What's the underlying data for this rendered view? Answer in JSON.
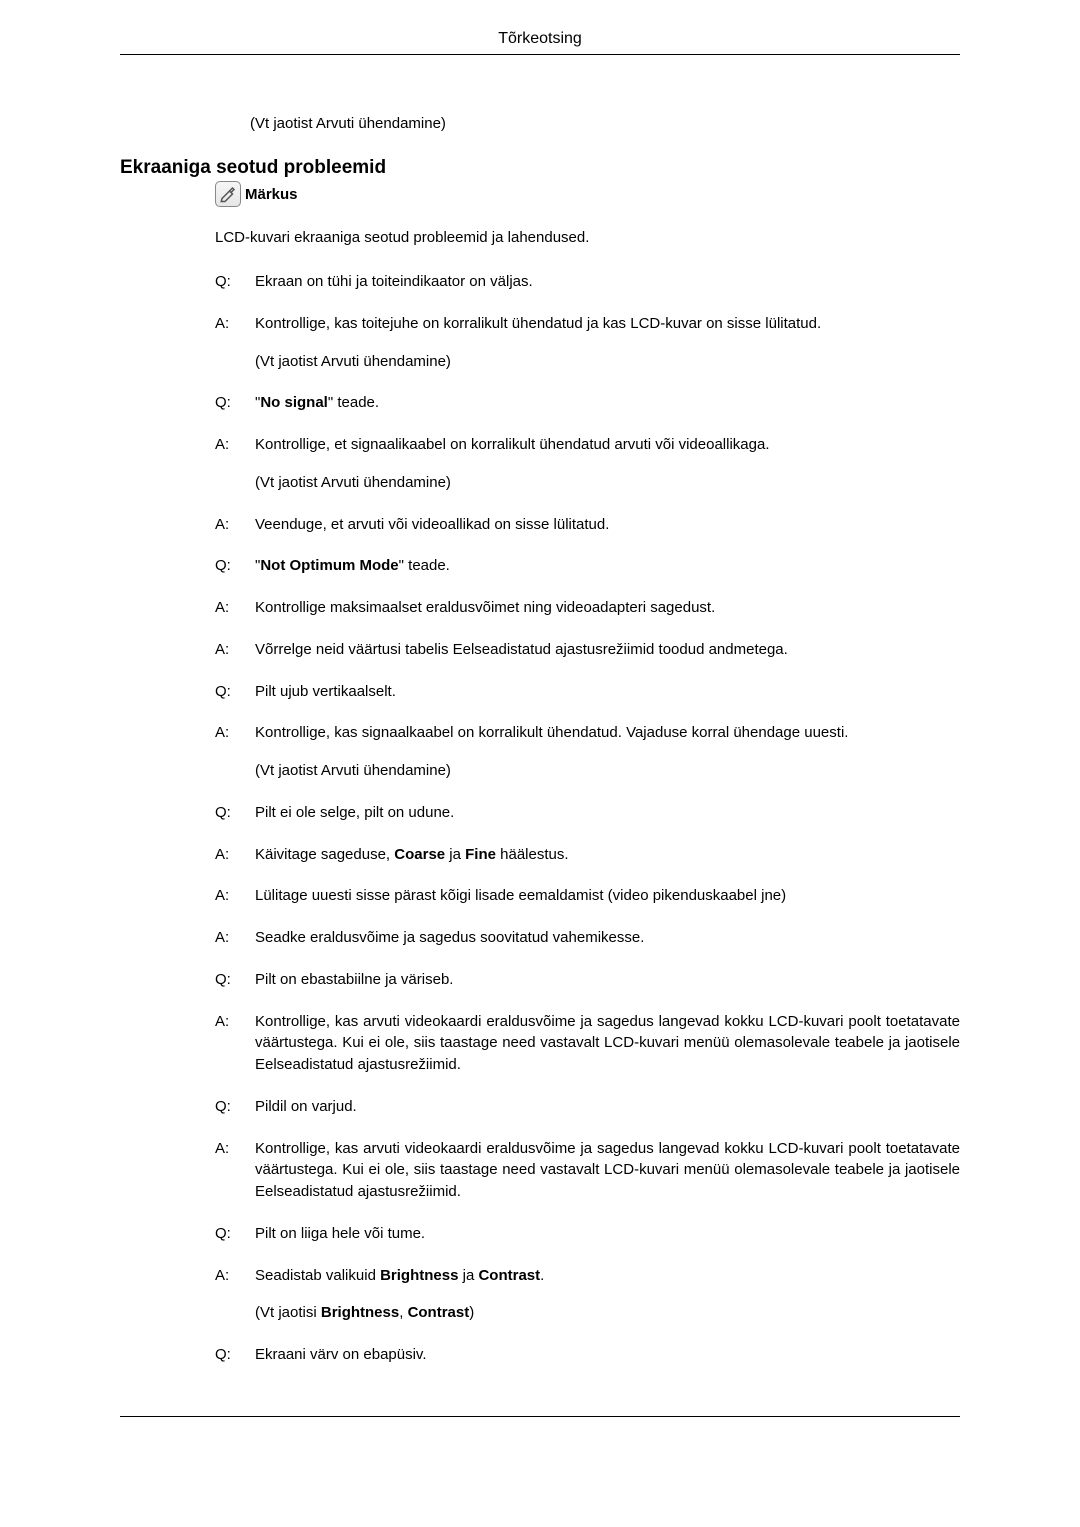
{
  "header": "Tõrkeotsing",
  "introRef": "(Vt jaotist Arvuti ühendamine)",
  "sectionTitle": "Ekraaniga seotud probleemid",
  "noteLabel": "Märkus",
  "description": "LCD-kuvari ekraaniga seotud probleemid ja lahendused.",
  "qa": [
    {
      "label": "Q:",
      "text": "Ekraan on tühi ja toiteindikaator on väljas."
    },
    {
      "label": "A:",
      "text": "Kontrollige, kas toitejuhe on korralikult ühendatud ja kas LCD-kuvar on sisse lülitatud.",
      "sub": "(Vt jaotist Arvuti ühendamine)"
    },
    {
      "label": "Q:",
      "text": "\"<b>No signal</b>\" teade."
    },
    {
      "label": "A:",
      "text": "Kontrollige, et signaalikaabel on korralikult ühendatud arvuti või videoallikaga.",
      "sub": "(Vt jaotist Arvuti ühendamine)"
    },
    {
      "label": "A:",
      "text": "Veenduge, et arvuti või videoallikad on sisse lülitatud."
    },
    {
      "label": "Q:",
      "text": "\"<b>Not Optimum Mode</b>\" teade."
    },
    {
      "label": "A:",
      "text": "Kontrollige maksimaalset eraldusvõimet ning videoadapteri sagedust."
    },
    {
      "label": "A:",
      "text": "Võrrelge neid väärtusi tabelis Eelseadistatud ajastusrežiimid toodud andmetega."
    },
    {
      "label": "Q:",
      "text": "Pilt ujub vertikaalselt."
    },
    {
      "label": "A:",
      "text": "Kontrollige, kas signaalkaabel on korralikult ühendatud. Vajaduse korral ühendage uuesti.",
      "sub": "(Vt jaotist Arvuti ühendamine)"
    },
    {
      "label": "Q:",
      "text": "Pilt ei ole selge, pilt on udune."
    },
    {
      "label": "A:",
      "text": "Käivitage sageduse, <b>Coarse</b> ja <b>Fine</b> häälestus."
    },
    {
      "label": "A:",
      "text": "Lülitage uuesti sisse pärast kõigi lisade eemaldamist (video pikenduskaabel jne)"
    },
    {
      "label": "A:",
      "text": "Seadke eraldusvõime ja sagedus soovitatud vahemikesse."
    },
    {
      "label": "Q:",
      "text": "Pilt on ebastabiilne ja väriseb."
    },
    {
      "label": "A:",
      "text": "Kontrollige, kas arvuti videokaardi eraldusvõime ja sagedus langevad kokku LCD-kuvari poolt toetatavate väärtustega. Kui ei ole, siis taastage need vastavalt LCD-kuvari menüü olemasolevale teabele ja jaotisele Eelseadistatud ajastusrežiimid."
    },
    {
      "label": "Q:",
      "text": "Pildil on varjud."
    },
    {
      "label": "A:",
      "text": "Kontrollige, kas arvuti videokaardi eraldusvõime ja sagedus langevad kokku LCD-kuvari poolt toetatavate väärtustega. Kui ei ole, siis taastage need vastavalt LCD-kuvari menüü olemasolevale teabele ja jaotisele Eelseadistatud ajastusrežiimid."
    },
    {
      "label": "Q:",
      "text": "Pilt on liiga hele või tume."
    },
    {
      "label": "A:",
      "text": "Seadistab valikuid <b>Brightness</b> ja <b>Contrast</b>.",
      "sub": "(Vt jaotisi <b>Brightness</b>, <b>Contrast</b>)"
    },
    {
      "label": "Q:",
      "text": "Ekraani värv on ebapüsiv."
    }
  ]
}
